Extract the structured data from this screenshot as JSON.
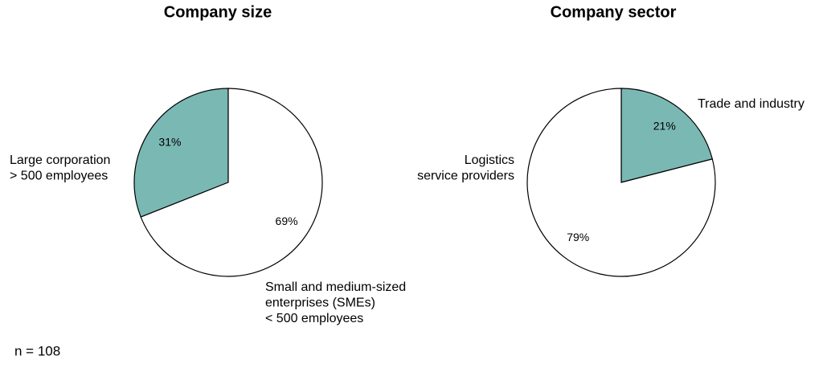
{
  "chart_data": [
    {
      "type": "pie",
      "title": "Company size",
      "categories": [
        [
          "Large corporation",
          "> 500 employees"
        ],
        [
          "Small and medium-sized",
          "enterprises (SMEs)",
          "< 500 employees"
        ]
      ],
      "values": [
        31,
        69
      ],
      "value_labels": [
        "31%",
        "69%"
      ],
      "colors": [
        "#7ab8b4",
        "#ffffff"
      ],
      "direction": "counterclockwise"
    },
    {
      "type": "pie",
      "title": "Company sector",
      "categories": [
        [
          "Trade and industry"
        ],
        [
          "Logistics",
          "service providers"
        ]
      ],
      "values": [
        21,
        79
      ],
      "value_labels": [
        "21%",
        "79%"
      ],
      "colors": [
        "#7ab8b4",
        "#ffffff"
      ],
      "direction": "clockwise"
    }
  ],
  "note": "n = 108"
}
